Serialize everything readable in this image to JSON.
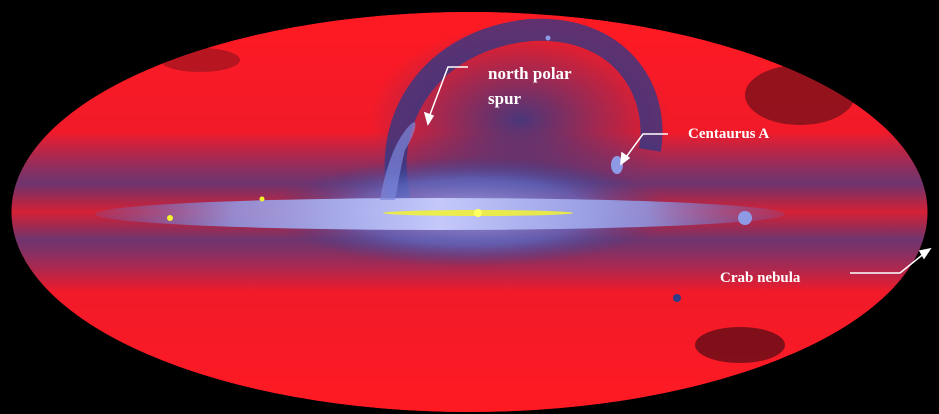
{
  "image": {
    "type": "all-sky map",
    "projection": "mollweide ellipse",
    "colors": {
      "background": "#000000",
      "high_latitude": "#ff1a1a",
      "low_latitude": "#2a3d80",
      "galactic_plane": "#b9bff5",
      "core": "#f2f230",
      "annotation": "#ffffff"
    }
  },
  "annotations": {
    "north_polar_spur": {
      "line1": "north polar",
      "line2": "spur"
    },
    "centaurus_a": {
      "label": "Centaurus A"
    },
    "crab_nebula": {
      "label": "Crab nebula"
    }
  }
}
